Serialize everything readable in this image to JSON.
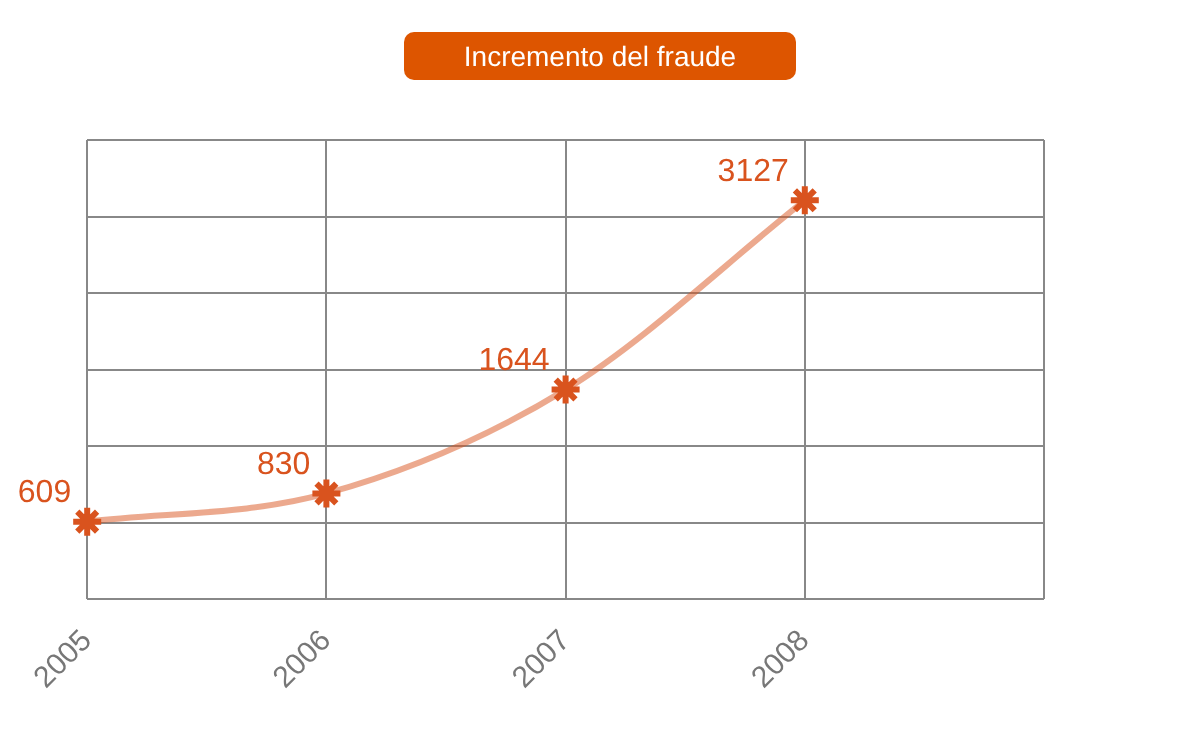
{
  "chart_data": {
    "type": "line",
    "title": "Incremento del fraude",
    "categories": [
      "2005",
      "2006",
      "2007",
      "2008",
      null
    ],
    "series": [
      {
        "color": "#d9531e",
        "values": [
          609,
          830,
          1644,
          3127,
          null
        ]
      }
    ],
    "ylim": [
      0,
      3600
    ],
    "yticks": [
      0,
      600,
      1200,
      1800,
      2400,
      3000,
      3600
    ],
    "tick_labels": "x",
    "grid": true,
    "legend": false,
    "marker": "cross",
    "line_style": "solid",
    "data_labels": true
  }
}
